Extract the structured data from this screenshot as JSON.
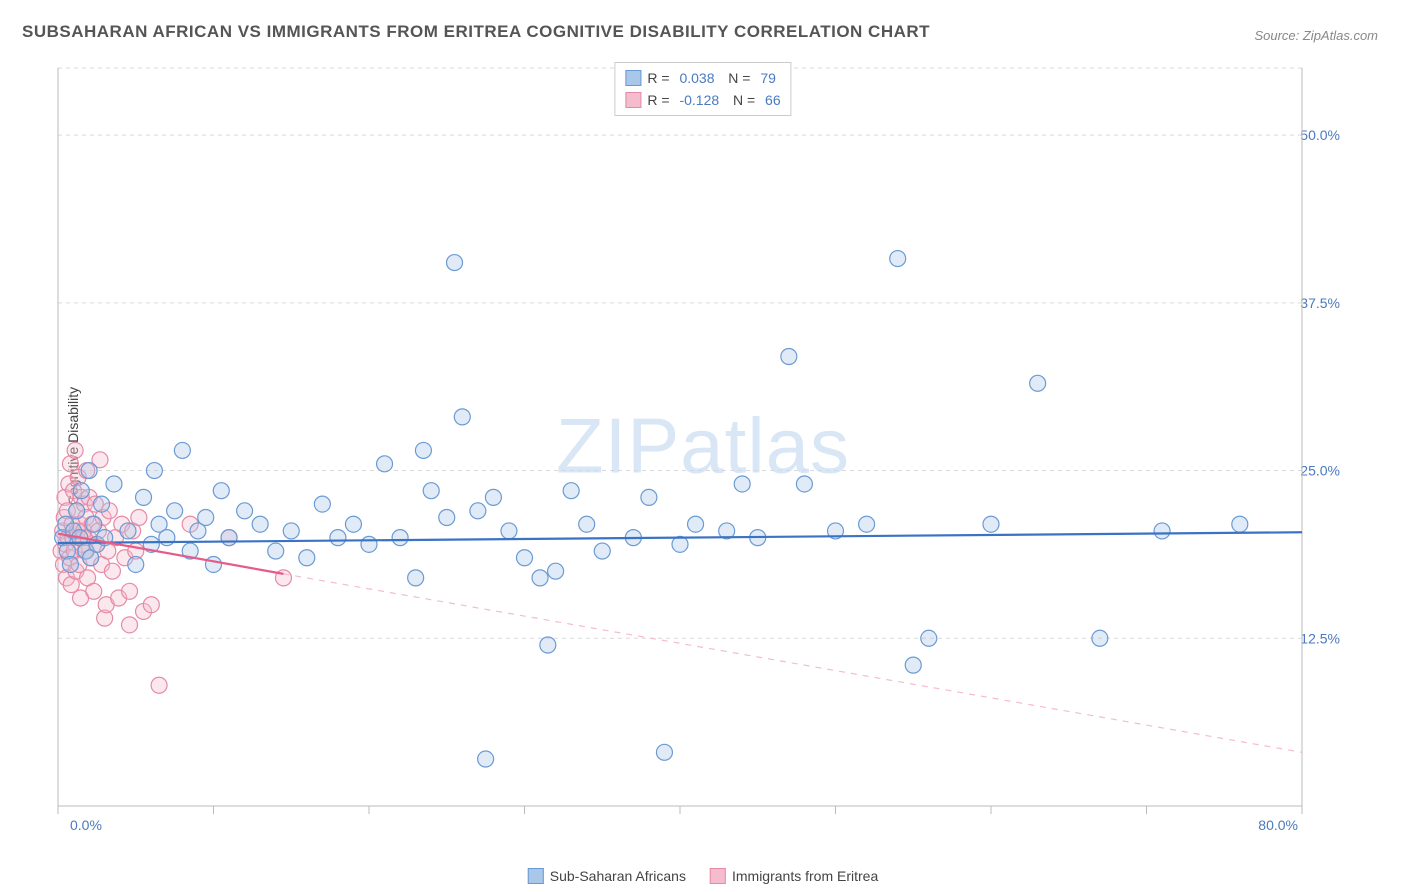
{
  "chart": {
    "type": "scatter",
    "title": "SUBSAHARAN AFRICAN VS IMMIGRANTS FROM ERITREA COGNITIVE DISABILITY CORRELATION CHART",
    "source": "Source: ZipAtlas.com",
    "watermark": "ZIPatlas",
    "y_axis_label": "Cognitive Disability",
    "background_color": "#ffffff",
    "grid_color": "#d9d9d9",
    "axis_line_color": "#bbbbbb",
    "tick_label_color": "#4a7abf",
    "axis_label_color": "#444444",
    "title_color": "#555555",
    "title_fontsize": 17,
    "label_fontsize": 14,
    "tick_fontsize": 14,
    "x_min": 0.0,
    "x_max": 80.0,
    "y_min": 0.0,
    "y_max": 55.0,
    "x_ticks": [
      0.0,
      10.0,
      20.0,
      30.0,
      40.0,
      50.0,
      60.0,
      70.0,
      80.0
    ],
    "x_tick_labels": [
      "0.0%",
      "",
      "",
      "",
      "",
      "",
      "",
      "",
      "80.0%"
    ],
    "y_ticks": [
      12.5,
      25.0,
      37.5,
      50.0
    ],
    "y_tick_labels": [
      "12.5%",
      "25.0%",
      "37.5%",
      "50.0%"
    ],
    "marker_radius": 8,
    "marker_fill_opacity": 0.35,
    "marker_stroke_width": 1.2,
    "series": [
      {
        "name": "Sub-Saharan Africans",
        "color_stroke": "#6a9ad4",
        "color_fill": "#a9c7e8",
        "R": "0.038",
        "N": "79",
        "trend": {
          "solid": {
            "x1": 0,
            "y1": 19.6,
            "x2": 80,
            "y2": 20.4,
            "color": "#3a72c4",
            "width": 2.2
          }
        },
        "points": [
          [
            0.3,
            20.0
          ],
          [
            0.5,
            21.0
          ],
          [
            0.6,
            19.0
          ],
          [
            0.8,
            18.0
          ],
          [
            1.0,
            20.5
          ],
          [
            1.2,
            22.0
          ],
          [
            1.4,
            20.0
          ],
          [
            1.5,
            23.5
          ],
          [
            1.8,
            19.0
          ],
          [
            2.0,
            25.0
          ],
          [
            2.1,
            18.5
          ],
          [
            2.3,
            21.0
          ],
          [
            2.5,
            19.5
          ],
          [
            2.8,
            22.5
          ],
          [
            3.0,
            20.0
          ],
          [
            3.6,
            24.0
          ],
          [
            4.5,
            20.5
          ],
          [
            5.0,
            18.0
          ],
          [
            5.5,
            23.0
          ],
          [
            6.0,
            19.5
          ],
          [
            6.2,
            25.0
          ],
          [
            6.5,
            21.0
          ],
          [
            7.0,
            20.0
          ],
          [
            7.5,
            22.0
          ],
          [
            8.0,
            26.5
          ],
          [
            8.5,
            19.0
          ],
          [
            9.0,
            20.5
          ],
          [
            9.5,
            21.5
          ],
          [
            10.0,
            18.0
          ],
          [
            10.5,
            23.5
          ],
          [
            11.0,
            20.0
          ],
          [
            12.0,
            22.0
          ],
          [
            13.0,
            21.0
          ],
          [
            14.0,
            19.0
          ],
          [
            15.0,
            20.5
          ],
          [
            16.0,
            18.5
          ],
          [
            17.0,
            22.5
          ],
          [
            18.0,
            20.0
          ],
          [
            19.0,
            21.0
          ],
          [
            20.0,
            19.5
          ],
          [
            21.0,
            25.5
          ],
          [
            22.0,
            20.0
          ],
          [
            23.0,
            17.0
          ],
          [
            23.5,
            26.5
          ],
          [
            24.0,
            23.5
          ],
          [
            25.0,
            21.5
          ],
          [
            25.5,
            40.5
          ],
          [
            26.0,
            29.0
          ],
          [
            27.0,
            22.0
          ],
          [
            27.5,
            3.5
          ],
          [
            28.0,
            23.0
          ],
          [
            29.0,
            20.5
          ],
          [
            30.0,
            18.5
          ],
          [
            31.0,
            17.0
          ],
          [
            31.5,
            12.0
          ],
          [
            32.0,
            17.5
          ],
          [
            33.0,
            23.5
          ],
          [
            34.0,
            21.0
          ],
          [
            35.0,
            19.0
          ],
          [
            37.0,
            20.0
          ],
          [
            38.0,
            23.0
          ],
          [
            39.0,
            4.0
          ],
          [
            40.0,
            19.5
          ],
          [
            41.0,
            21.0
          ],
          [
            43.0,
            20.5
          ],
          [
            44.0,
            24.0
          ],
          [
            45.0,
            20.0
          ],
          [
            47.0,
            33.5
          ],
          [
            48.0,
            24.0
          ],
          [
            50.0,
            20.5
          ],
          [
            52.0,
            21.0
          ],
          [
            54.0,
            40.8
          ],
          [
            55.0,
            10.5
          ],
          [
            56.0,
            12.5
          ],
          [
            60.0,
            21.0
          ],
          [
            63.0,
            31.5
          ],
          [
            67.0,
            12.5
          ],
          [
            71.0,
            20.5
          ],
          [
            76.0,
            21.0
          ]
        ]
      },
      {
        "name": "Immigrants from Eritrea",
        "color_stroke": "#e68aa5",
        "color_fill": "#f4bccd",
        "R": "-0.128",
        "N": "66",
        "trend": {
          "solid": {
            "x1": 0,
            "y1": 20.3,
            "x2": 14.5,
            "y2": 17.3,
            "color": "#e65b87",
            "width": 2.2
          },
          "dash": {
            "x1": 14.5,
            "y1": 17.3,
            "x2": 80,
            "y2": 4.0,
            "color": "#f4bccd",
            "width": 1.2
          }
        },
        "points": [
          [
            0.2,
            19.0
          ],
          [
            0.3,
            20.5
          ],
          [
            0.35,
            18.0
          ],
          [
            0.4,
            21.5
          ],
          [
            0.45,
            23.0
          ],
          [
            0.5,
            19.5
          ],
          [
            0.55,
            17.0
          ],
          [
            0.6,
            22.0
          ],
          [
            0.65,
            20.0
          ],
          [
            0.7,
            24.0
          ],
          [
            0.75,
            18.5
          ],
          [
            0.8,
            25.5
          ],
          [
            0.85,
            16.5
          ],
          [
            0.9,
            21.0
          ],
          [
            0.95,
            20.0
          ],
          [
            1.0,
            23.5
          ],
          [
            1.05,
            19.0
          ],
          [
            1.1,
            26.5
          ],
          [
            1.15,
            17.5
          ],
          [
            1.2,
            22.0
          ],
          [
            1.25,
            20.5
          ],
          [
            1.3,
            24.5
          ],
          [
            1.35,
            18.0
          ],
          [
            1.4,
            21.0
          ],
          [
            1.45,
            15.5
          ],
          [
            1.5,
            23.0
          ],
          [
            1.55,
            19.5
          ],
          [
            1.6,
            20.0
          ],
          [
            1.65,
            20.5
          ],
          [
            1.7,
            22.5
          ],
          [
            1.75,
            19.0
          ],
          [
            1.8,
            21.5
          ],
          [
            1.85,
            25.0
          ],
          [
            1.9,
            17.0
          ],
          [
            1.95,
            20.0
          ],
          [
            2.0,
            23.0
          ],
          [
            2.1,
            18.5
          ],
          [
            2.2,
            21.0
          ],
          [
            2.3,
            16.0
          ],
          [
            2.4,
            22.5
          ],
          [
            2.5,
            19.5
          ],
          [
            2.6,
            20.5
          ],
          [
            2.7,
            25.8
          ],
          [
            2.8,
            18.0
          ],
          [
            2.9,
            21.5
          ],
          [
            3.0,
            14.0
          ],
          [
            3.1,
            15.0
          ],
          [
            3.2,
            19.0
          ],
          [
            3.3,
            22.0
          ],
          [
            3.5,
            17.5
          ],
          [
            3.7,
            20.0
          ],
          [
            3.9,
            15.5
          ],
          [
            4.1,
            21.0
          ],
          [
            4.3,
            18.5
          ],
          [
            4.6,
            13.5
          ],
          [
            4.6,
            16.0
          ],
          [
            4.8,
            20.5
          ],
          [
            5.0,
            19.0
          ],
          [
            5.2,
            21.5
          ],
          [
            5.5,
            14.5
          ],
          [
            6.0,
            15.0
          ],
          [
            6.5,
            9.0
          ],
          [
            8.5,
            21.0
          ],
          [
            11.0,
            20.0
          ],
          [
            14.5,
            17.0
          ]
        ]
      }
    ],
    "legend_bottom": [
      {
        "label": "Sub-Saharan Africans",
        "swatch_fill": "#a9c7e8",
        "swatch_stroke": "#6a9ad4"
      },
      {
        "label": "Immigrants from Eritrea",
        "swatch_fill": "#f4bccd",
        "swatch_stroke": "#e68aa5"
      }
    ]
  }
}
